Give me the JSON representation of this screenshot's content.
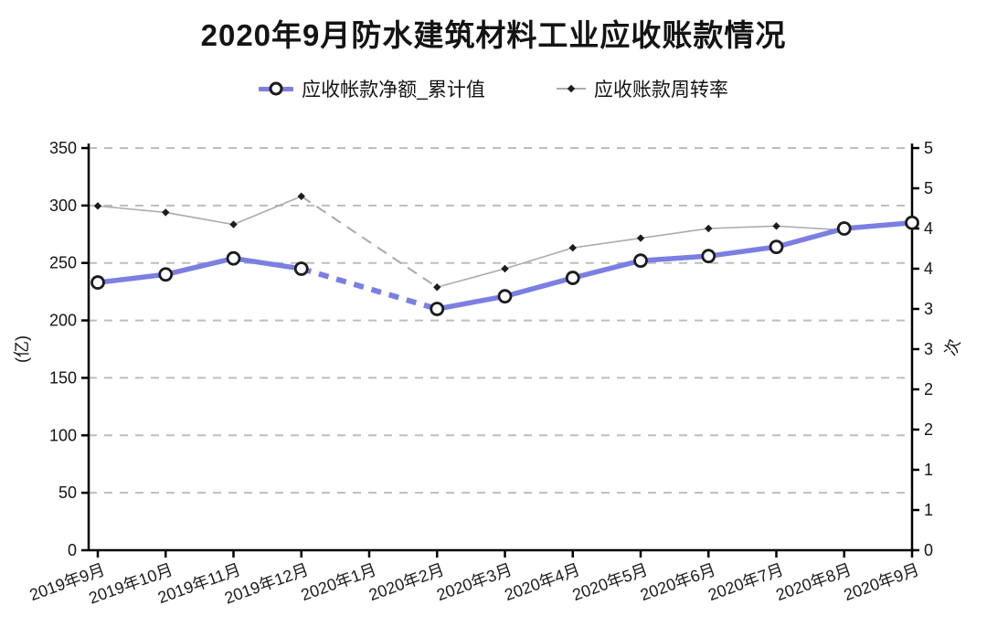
{
  "title": "2020年9月防水建筑材料工业应收账款情况",
  "legend": [
    {
      "label": "应收帐款净额_累计值",
      "marker": "thick-blue-line-circle"
    },
    {
      "label": "应收账款周转率",
      "marker": "thin-gray-line-diamond"
    }
  ],
  "colors": {
    "net_line": "#7b7fe2",
    "turnover_line": "#ababab",
    "marker_stroke": "#1c1c1c",
    "grid": "#bdbdbd",
    "axis": "#000000"
  },
  "chart_data": {
    "type": "line",
    "title": "2020年9月防水建筑材料工业应收账款情况",
    "categories": [
      "2019年9月",
      "2019年10月",
      "2019年11月",
      "2019年12月",
      "2020年1月",
      "2020年2月",
      "2020年3月",
      "2020年4月",
      "2020年5月",
      "2020年6月",
      "2020年7月",
      "2020年8月",
      "2020年9月"
    ],
    "series": [
      {
        "name": "应收帐款净额_累计值",
        "axis": "left",
        "style": "thick-circle",
        "color": "#7b7fe2",
        "values": [
          233,
          240,
          254,
          245,
          null,
          210,
          221,
          237,
          252,
          256,
          264,
          280,
          285
        ]
      },
      {
        "name": "应收账款周转率",
        "axis": "right",
        "style": "thin-diamond",
        "color": "#ababab",
        "values": [
          4.28,
          4.2,
          4.05,
          4.4,
          null,
          3.27,
          3.5,
          3.76,
          3.88,
          4.0,
          4.03,
          3.98,
          4.08
        ]
      }
    ],
    "left_axis": {
      "label": "(亿)",
      "min": 0,
      "max": 350,
      "step": 50
    },
    "right_axis": {
      "label": "次",
      "min": 0,
      "max": 5,
      "step": 0.5,
      "tick_labels": [
        "0",
        "1",
        "1",
        "2",
        "2",
        "3",
        "3",
        "4",
        "4",
        "5",
        "5"
      ]
    },
    "grid": "horizontal-dashed",
    "legend_position": "top",
    "missing_data": "2020年1月 has no data; neighboring points are joined with dashed segments"
  }
}
